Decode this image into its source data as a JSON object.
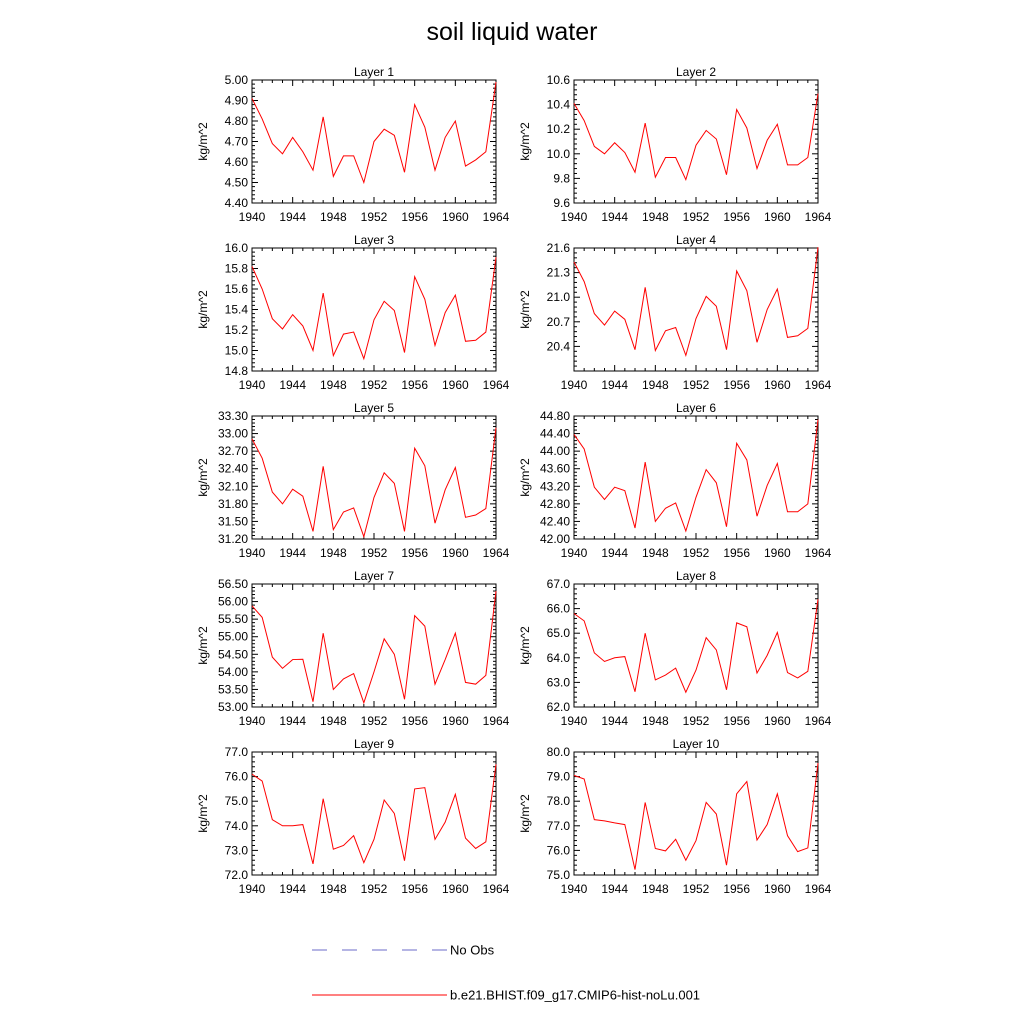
{
  "figure": {
    "title": "soil liquid water"
  },
  "colors": {
    "model": "#ff0000",
    "obs": "#6b6bc8",
    "axis": "#000000"
  },
  "legend": {
    "items": [
      {
        "label": "No Obs",
        "style": "dashed",
        "color": "#6b6bc8"
      },
      {
        "label": "b.e21.BHIST.f09_g17.CMIP6-hist-noLu.001",
        "style": "solid",
        "color": "#ff0000"
      }
    ]
  },
  "chart_data": [
    {
      "type": "line",
      "title": "Layer 1",
      "ylabel": "kg/m^2",
      "xlim": [
        1940,
        1964
      ],
      "xticks": [
        "1940",
        "1944",
        "1948",
        "1952",
        "1956",
        "1960",
        "1964"
      ],
      "ylim": [
        4.4,
        5.0
      ],
      "yticks": [
        "4.40",
        "4.50",
        "4.60",
        "4.70",
        "4.80",
        "4.90",
        "5.00"
      ],
      "x": [
        1940,
        1941,
        1942,
        1943,
        1944,
        1945,
        1946,
        1947,
        1948,
        1949,
        1950,
        1951,
        1952,
        1953,
        1954,
        1955,
        1956,
        1957,
        1958,
        1959,
        1960,
        1961,
        1962,
        1963,
        1964
      ],
      "series": [
        {
          "name": "b.e21.BHIST.f09_g17.CMIP6-hist-noLu.001",
          "values": [
            4.91,
            4.81,
            4.69,
            4.64,
            4.72,
            4.65,
            4.56,
            4.82,
            4.53,
            4.63,
            4.63,
            4.5,
            4.7,
            4.76,
            4.73,
            4.55,
            4.88,
            4.77,
            4.56,
            4.72,
            4.8,
            4.58,
            4.61,
            4.65,
            4.99
          ]
        }
      ]
    },
    {
      "type": "line",
      "title": "Layer 2",
      "ylabel": "kg/m^2",
      "xlim": [
        1940,
        1964
      ],
      "xticks": [
        "1940",
        "1944",
        "1948",
        "1952",
        "1956",
        "1960",
        "1964"
      ],
      "ylim": [
        9.6,
        10.6
      ],
      "yticks": [
        "9.6",
        "9.8",
        "10.0",
        "10.2",
        "10.4",
        "10.6"
      ],
      "x": [
        1940,
        1941,
        1942,
        1943,
        1944,
        1945,
        1946,
        1947,
        1948,
        1949,
        1950,
        1951,
        1952,
        1953,
        1954,
        1955,
        1956,
        1957,
        1958,
        1959,
        1960,
        1961,
        1962,
        1963,
        1964
      ],
      "series": [
        {
          "name": "b.e21.BHIST.f09_g17.CMIP6-hist-noLu.001",
          "values": [
            10.41,
            10.27,
            10.06,
            10.0,
            10.09,
            10.01,
            9.85,
            10.25,
            9.81,
            9.97,
            9.97,
            9.79,
            10.07,
            10.19,
            10.12,
            9.83,
            10.36,
            10.21,
            9.88,
            10.11,
            10.24,
            9.91,
            9.91,
            9.97,
            10.49
          ]
        }
      ]
    },
    {
      "type": "line",
      "title": "Layer 3",
      "ylabel": "kg/m^2",
      "xlim": [
        1940,
        1964
      ],
      "xticks": [
        "1940",
        "1944",
        "1948",
        "1952",
        "1956",
        "1960",
        "1964"
      ],
      "ylim": [
        14.8,
        16.0
      ],
      "yticks": [
        "14.8",
        "15.0",
        "15.2",
        "15.4",
        "15.6",
        "15.8",
        "16.0"
      ],
      "x": [
        1940,
        1941,
        1942,
        1943,
        1944,
        1945,
        1946,
        1947,
        1948,
        1949,
        1950,
        1951,
        1952,
        1953,
        1954,
        1955,
        1956,
        1957,
        1958,
        1959,
        1960,
        1961,
        1962,
        1963,
        1964
      ],
      "series": [
        {
          "name": "b.e21.BHIST.f09_g17.CMIP6-hist-noLu.001",
          "values": [
            15.82,
            15.6,
            15.31,
            15.21,
            15.35,
            15.24,
            15.0,
            15.56,
            14.95,
            15.16,
            15.18,
            14.92,
            15.3,
            15.48,
            15.39,
            14.98,
            15.72,
            15.5,
            15.05,
            15.37,
            15.54,
            15.09,
            15.1,
            15.18,
            15.91
          ]
        }
      ]
    },
    {
      "type": "line",
      "title": "Layer 4",
      "ylabel": "kg/m^2",
      "xlim": [
        1940,
        1964
      ],
      "xticks": [
        "1940",
        "1944",
        "1948",
        "1952",
        "1956",
        "1960",
        "1964"
      ],
      "ylim": [
        20.1,
        21.6
      ],
      "yticks": [
        "20.4",
        "20.7",
        "21.0",
        "21.3",
        "21.6"
      ],
      "x": [
        1940,
        1941,
        1942,
        1943,
        1944,
        1945,
        1946,
        1947,
        1948,
        1949,
        1950,
        1951,
        1952,
        1953,
        1954,
        1955,
        1956,
        1957,
        1958,
        1959,
        1960,
        1961,
        1962,
        1963,
        1964
      ],
      "series": [
        {
          "name": "b.e21.BHIST.f09_g17.CMIP6-hist-noLu.001",
          "values": [
            21.43,
            21.19,
            20.8,
            20.66,
            20.83,
            20.73,
            20.36,
            21.12,
            20.35,
            20.59,
            20.63,
            20.29,
            20.74,
            21.01,
            20.89,
            20.36,
            21.32,
            21.08,
            20.45,
            20.85,
            21.1,
            20.51,
            20.53,
            20.62,
            21.61
          ]
        }
      ]
    },
    {
      "type": "line",
      "title": "Layer 5",
      "ylabel": "kg/m^2",
      "xlim": [
        1940,
        1964
      ],
      "xticks": [
        "1940",
        "1944",
        "1948",
        "1952",
        "1956",
        "1960",
        "1964"
      ],
      "ylim": [
        31.2,
        33.3
      ],
      "yticks": [
        "31.20",
        "31.50",
        "31.80",
        "32.10",
        "32.40",
        "32.70",
        "33.00",
        "33.30"
      ],
      "x": [
        1940,
        1941,
        1942,
        1943,
        1944,
        1945,
        1946,
        1947,
        1948,
        1949,
        1950,
        1951,
        1952,
        1953,
        1954,
        1955,
        1956,
        1957,
        1958,
        1959,
        1960,
        1961,
        1962,
        1963,
        1964
      ],
      "series": [
        {
          "name": "b.e21.BHIST.f09_g17.CMIP6-hist-noLu.001",
          "values": [
            32.91,
            32.58,
            32.0,
            31.8,
            32.05,
            31.93,
            31.33,
            32.44,
            31.36,
            31.66,
            31.73,
            31.24,
            31.91,
            32.33,
            32.15,
            31.33,
            32.75,
            32.45,
            31.47,
            32.04,
            32.42,
            31.57,
            31.61,
            31.72,
            33.1
          ]
        }
      ]
    },
    {
      "type": "line",
      "title": "Layer 6",
      "ylabel": "kg/m^2",
      "xlim": [
        1940,
        1964
      ],
      "xticks": [
        "1940",
        "1944",
        "1948",
        "1952",
        "1956",
        "1960",
        "1964"
      ],
      "ylim": [
        42.0,
        44.8
      ],
      "yticks": [
        "42.00",
        "42.40",
        "42.80",
        "43.20",
        "43.60",
        "44.00",
        "44.40",
        "44.80"
      ],
      "x": [
        1940,
        1941,
        1942,
        1943,
        1944,
        1945,
        1946,
        1947,
        1948,
        1949,
        1950,
        1951,
        1952,
        1953,
        1954,
        1955,
        1956,
        1957,
        1958,
        1959,
        1960,
        1961,
        1962,
        1963,
        1964
      ],
      "series": [
        {
          "name": "b.e21.BHIST.f09_g17.CMIP6-hist-noLu.001",
          "values": [
            44.38,
            44.05,
            43.18,
            42.9,
            43.18,
            43.1,
            42.25,
            43.75,
            42.4,
            42.7,
            42.82,
            42.18,
            42.95,
            43.58,
            43.28,
            42.28,
            44.18,
            43.8,
            42.52,
            43.22,
            43.72,
            42.62,
            42.62,
            42.8,
            44.72
          ]
        }
      ]
    },
    {
      "type": "line",
      "title": "Layer 7",
      "ylabel": "kg/m^2",
      "xlim": [
        1940,
        1964
      ],
      "xticks": [
        "1940",
        "1944",
        "1948",
        "1952",
        "1956",
        "1960",
        "1964"
      ],
      "ylim": [
        53.0,
        56.5
      ],
      "yticks": [
        "53.00",
        "53.50",
        "54.00",
        "54.50",
        "55.00",
        "55.50",
        "56.00",
        "56.50"
      ],
      "x": [
        1940,
        1941,
        1942,
        1943,
        1944,
        1945,
        1946,
        1947,
        1948,
        1949,
        1950,
        1951,
        1952,
        1953,
        1954,
        1955,
        1956,
        1957,
        1958,
        1959,
        1960,
        1961,
        1962,
        1963,
        1964
      ],
      "series": [
        {
          "name": "b.e21.BHIST.f09_g17.CMIP6-hist-noLu.001",
          "values": [
            55.88,
            55.55,
            54.42,
            54.1,
            54.35,
            54.36,
            53.15,
            55.1,
            53.5,
            53.8,
            53.95,
            53.12,
            54.0,
            54.94,
            54.5,
            53.22,
            55.6,
            55.3,
            53.65,
            54.35,
            55.1,
            53.7,
            53.65,
            53.9,
            56.3
          ]
        }
      ]
    },
    {
      "type": "line",
      "title": "Layer 8",
      "ylabel": "kg/m^2",
      "xlim": [
        1940,
        1964
      ],
      "xticks": [
        "1940",
        "1944",
        "1948",
        "1952",
        "1956",
        "1960",
        "1964"
      ],
      "ylim": [
        62.0,
        67.0
      ],
      "yticks": [
        "62.0",
        "63.0",
        "64.0",
        "65.0",
        "66.0",
        "67.0"
      ],
      "x": [
        1940,
        1941,
        1942,
        1943,
        1944,
        1945,
        1946,
        1947,
        1948,
        1949,
        1950,
        1951,
        1952,
        1953,
        1954,
        1955,
        1956,
        1957,
        1958,
        1959,
        1960,
        1961,
        1962,
        1963,
        1964
      ],
      "series": [
        {
          "name": "b.e21.BHIST.f09_g17.CMIP6-hist-noLu.001",
          "values": [
            65.8,
            65.5,
            64.2,
            63.85,
            64.0,
            64.05,
            62.62,
            65.0,
            63.1,
            63.3,
            63.58,
            62.6,
            63.5,
            64.82,
            64.32,
            62.7,
            65.42,
            65.26,
            63.38,
            64.1,
            65.03,
            63.4,
            63.18,
            63.45,
            66.38
          ]
        }
      ]
    },
    {
      "type": "line",
      "title": "Layer 9",
      "ylabel": "kg/m^2",
      "xlim": [
        1940,
        1964
      ],
      "xticks": [
        "1940",
        "1944",
        "1948",
        "1952",
        "1956",
        "1960",
        "1964"
      ],
      "ylim": [
        72.0,
        77.0
      ],
      "yticks": [
        "72.0",
        "73.0",
        "74.0",
        "75.0",
        "76.0",
        "77.0"
      ],
      "x": [
        1940,
        1941,
        1942,
        1943,
        1944,
        1945,
        1946,
        1947,
        1948,
        1949,
        1950,
        1951,
        1952,
        1953,
        1954,
        1955,
        1956,
        1957,
        1958,
        1959,
        1960,
        1961,
        1962,
        1963,
        1964
      ],
      "series": [
        {
          "name": "b.e21.BHIST.f09_g17.CMIP6-hist-noLu.001",
          "values": [
            76.1,
            75.82,
            74.25,
            74.0,
            74.0,
            74.05,
            72.45,
            75.1,
            73.05,
            73.2,
            73.6,
            72.5,
            73.45,
            75.05,
            74.5,
            72.58,
            75.5,
            75.55,
            73.45,
            74.15,
            75.28,
            73.5,
            73.08,
            73.35,
            76.5
          ]
        }
      ]
    },
    {
      "type": "line",
      "title": "Layer 10",
      "ylabel": "kg/m^2",
      "xlim": [
        1940,
        1964
      ],
      "xticks": [
        "1940",
        "1944",
        "1948",
        "1952",
        "1956",
        "1960",
        "1964"
      ],
      "ylim": [
        75.0,
        80.0
      ],
      "yticks": [
        "75.0",
        "76.0",
        "77.0",
        "78.0",
        "79.0",
        "80.0"
      ],
      "x": [
        1940,
        1941,
        1942,
        1943,
        1944,
        1945,
        1946,
        1947,
        1948,
        1949,
        1950,
        1951,
        1952,
        1953,
        1954,
        1955,
        1956,
        1957,
        1958,
        1959,
        1960,
        1961,
        1962,
        1963,
        1964
      ],
      "series": [
        {
          "name": "b.e21.BHIST.f09_g17.CMIP6-hist-noLu.001",
          "values": [
            79.05,
            78.9,
            77.25,
            77.2,
            77.12,
            77.05,
            75.22,
            77.95,
            76.08,
            75.98,
            76.45,
            75.6,
            76.4,
            77.95,
            77.48,
            75.4,
            78.3,
            78.8,
            76.42,
            77.05,
            78.3,
            76.6,
            75.95,
            76.1,
            79.55
          ]
        }
      ]
    }
  ]
}
